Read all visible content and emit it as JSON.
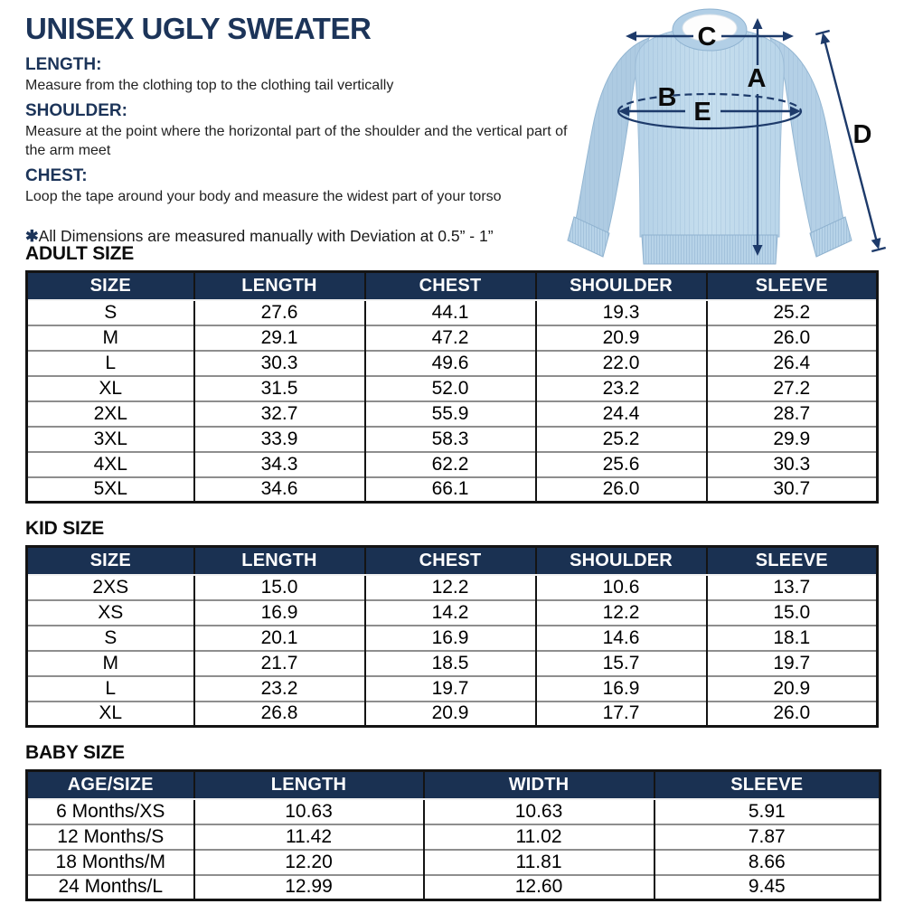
{
  "header": {
    "title": "UNISEX UGLY SWEATER",
    "instructions": [
      {
        "label": "LENGTH:",
        "text": "Measure from the clothing top to the clothing tail vertically"
      },
      {
        "label": "SHOULDER:",
        "text": "Measure at the point where the horizontal part of the shoulder and the vertical part of the arm meet"
      },
      {
        "label": "CHEST:",
        "text": "Loop the tape around your body and measure the widest part of your torso"
      }
    ],
    "note_symbol": "✱",
    "note_text": "All Dimensions are measured manually with Deviation at 0.5” - 1”"
  },
  "diagram": {
    "letters": {
      "length": "A",
      "chest": "B",
      "shoulder_width": "C",
      "sleeve": "D",
      "width": "E"
    },
    "colors": {
      "sweater": "#c0daec",
      "sweater_shade": "#aecbe2",
      "arrow": "#1d3a6a",
      "letter": "#0b0b0b"
    }
  },
  "tables": [
    {
      "id": "adult",
      "heading": "ADULT SIZE",
      "columns": [
        "SIZE",
        "LENGTH",
        "CHEST",
        "SHOULDER",
        "SLEEVE"
      ],
      "rows": [
        [
          "S",
          "27.6",
          "44.1",
          "19.3",
          "25.2"
        ],
        [
          "M",
          "29.1",
          "47.2",
          "20.9",
          "26.0"
        ],
        [
          "L",
          "30.3",
          "49.6",
          "22.0",
          "26.4"
        ],
        [
          "XL",
          "31.5",
          "52.0",
          "23.2",
          "27.2"
        ],
        [
          "2XL",
          "32.7",
          "55.9",
          "24.4",
          "28.7"
        ],
        [
          "3XL",
          "33.9",
          "58.3",
          "25.2",
          "29.9"
        ],
        [
          "4XL",
          "34.3",
          "62.2",
          "25.6",
          "30.3"
        ],
        [
          "5XL",
          "34.6",
          "66.1",
          "26.0",
          "30.7"
        ]
      ]
    },
    {
      "id": "kid",
      "heading": "KID SIZE",
      "columns": [
        "SIZE",
        "LENGTH",
        "CHEST",
        "SHOULDER",
        "SLEEVE"
      ],
      "rows": [
        [
          "2XS",
          "15.0",
          "12.2",
          "10.6",
          "13.7"
        ],
        [
          "XS",
          "16.9",
          "14.2",
          "12.2",
          "15.0"
        ],
        [
          "S",
          "20.1",
          "16.9",
          "14.6",
          "18.1"
        ],
        [
          "M",
          "21.7",
          "18.5",
          "15.7",
          "19.7"
        ],
        [
          "L",
          "23.2",
          "19.7",
          "16.9",
          "20.9"
        ],
        [
          "XL",
          "26.8",
          "20.9",
          "17.7",
          "26.0"
        ]
      ]
    },
    {
      "id": "baby",
      "heading": "BABY SIZE",
      "columns": [
        "AGE/SIZE",
        "LENGTH",
        "WIDTH",
        "SLEEVE"
      ],
      "rows": [
        [
          "6 Months/XS",
          "10.63",
          "10.63",
          "5.91"
        ],
        [
          "12 Months/S",
          "11.42",
          "11.02",
          "7.87"
        ],
        [
          "18 Months/M",
          "12.20",
          "11.81",
          "8.66"
        ],
        [
          "24 Months/L",
          "12.99",
          "12.60",
          "9.45"
        ]
      ]
    }
  ],
  "colors": {
    "accent_navy": "#1c3459",
    "table_header_bg": "#1a3152",
    "table_border": "#141414",
    "row_divider": "#8e8e8e"
  }
}
